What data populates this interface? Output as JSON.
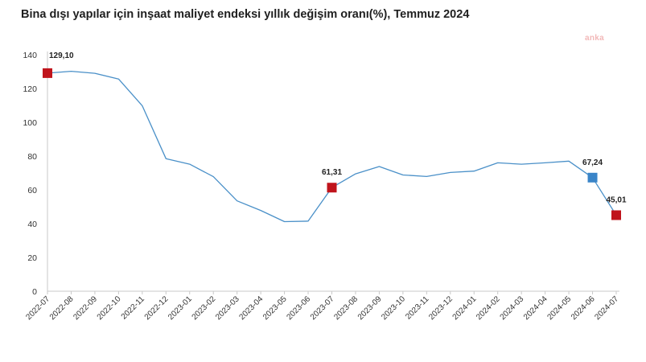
{
  "title": "Bina dışı yapılar için inşaat maliyet endeksi yıllık değişim oranı(%), Temmuz 2024",
  "watermark": "anka",
  "colors": {
    "line": "#4a90c8",
    "highlight_red": "#c0141c",
    "highlight_blue": "#3a85c8",
    "axis": "#c9c9c9"
  },
  "chart_data": {
    "type": "line",
    "title": "Bina dışı yapılar için inşaat maliyet endeksi yıllık değişim oranı(%), Temmuz 2024",
    "xlabel": "",
    "ylabel": "",
    "ylim": [
      0,
      140
    ],
    "yticks": [
      0,
      20,
      40,
      60,
      80,
      100,
      120,
      140
    ],
    "grid": false,
    "x": [
      "2022-07",
      "2022-08",
      "2022-09",
      "2022-10",
      "2022-11",
      "2022-12",
      "2023-01",
      "2023-02",
      "2023-03",
      "2023-04",
      "2023-05",
      "2023-06",
      "2023-07",
      "2023-08",
      "2023-09",
      "2023-10",
      "2023-11",
      "2023-12",
      "2024-01",
      "2024-02",
      "2024-03",
      "2024-04",
      "2024-05",
      "2024-06",
      "2024-07"
    ],
    "series": [
      {
        "values": [
          129.1,
          130.2,
          129.0,
          125.6,
          109.8,
          78.5,
          75.2,
          67.8,
          53.5,
          47.8,
          41.2,
          41.5,
          61.31,
          69.5,
          73.8,
          68.8,
          67.9,
          70.3,
          71.1,
          76.0,
          75.2,
          76.0,
          77.0,
          67.24,
          45.01
        ]
      }
    ],
    "highlights": [
      {
        "index": 0,
        "label": "129,10",
        "color": "red"
      },
      {
        "index": 12,
        "label": "61,31",
        "color": "red"
      },
      {
        "index": 23,
        "label": "67,24",
        "color": "blue"
      },
      {
        "index": 24,
        "label": "45,01",
        "color": "red"
      }
    ]
  }
}
